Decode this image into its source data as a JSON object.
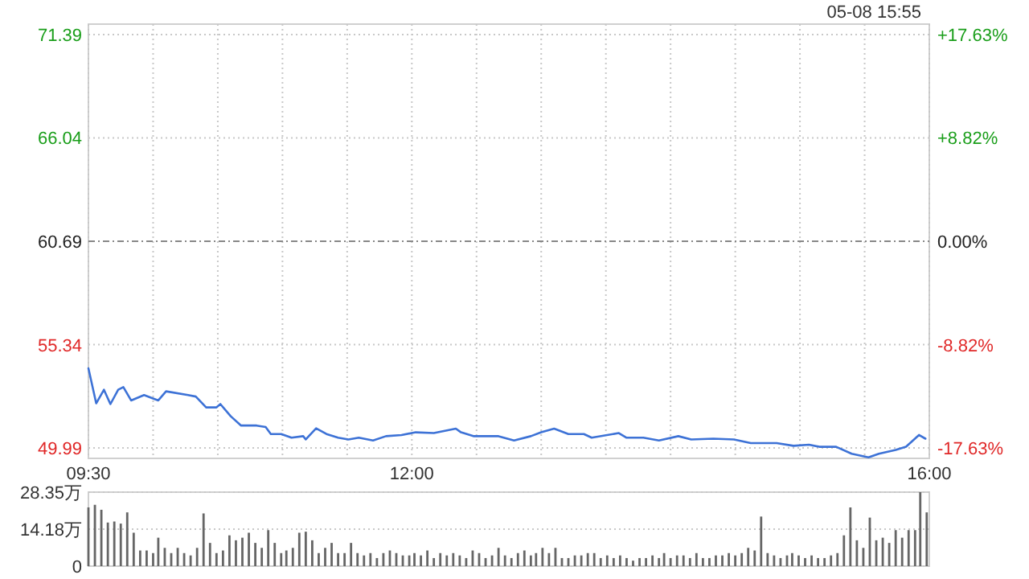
{
  "chart_data": [
    {
      "type": "line",
      "annotations": [
        "05-08 15:55"
      ],
      "x": [
        9.5,
        9.56,
        9.62,
        9.67,
        9.73,
        9.77,
        9.83,
        9.93,
        10.04,
        10.1,
        10.27,
        10.33,
        10.41,
        10.49,
        10.52,
        10.6,
        10.68,
        10.8,
        10.87,
        10.91,
        10.99,
        11.07,
        11.16,
        11.18,
        11.26,
        11.34,
        11.43,
        11.51,
        11.59,
        11.7,
        11.8,
        11.92,
        12.03,
        12.17,
        12.34,
        12.38,
        12.48,
        12.59,
        12.67,
        12.79,
        12.92,
        13.0,
        13.1,
        13.21,
        13.33,
        13.39,
        13.6,
        13.66,
        13.79,
        13.91,
        14.06,
        14.16,
        14.33,
        14.49,
        14.62,
        14.82,
        14.95,
        15.07,
        15.15,
        15.28,
        15.4,
        15.53,
        15.61,
        15.74,
        15.82,
        15.92,
        15.97
      ],
      "series": [
        {
          "color": "#3d72d6",
          "values": [
            54.11,
            52.3,
            53.0,
            52.26,
            53.0,
            53.14,
            52.45,
            52.73,
            52.45,
            52.92,
            52.73,
            52.65,
            52.09,
            52.09,
            52.26,
            51.63,
            51.15,
            51.15,
            51.07,
            50.71,
            50.71,
            50.52,
            50.6,
            50.43,
            51.01,
            50.71,
            50.52,
            50.43,
            50.52,
            50.38,
            50.6,
            50.66,
            50.8,
            50.76,
            50.99,
            50.8,
            50.6,
            50.6,
            50.6,
            50.38,
            50.6,
            50.8,
            50.99,
            50.71,
            50.71,
            50.52,
            50.76,
            50.52,
            50.52,
            50.38,
            50.6,
            50.43,
            50.47,
            50.43,
            50.24,
            50.24,
            50.1,
            50.16,
            50.05,
            50.05,
            49.69,
            49.5,
            49.69,
            49.89,
            50.05,
            50.66,
            50.47
          ]
        }
      ],
      "xlim": [
        9.5,
        16
      ],
      "xticks": [
        {
          "value": 9.5,
          "label": "09:30"
        },
        {
          "value": 10,
          "label": null
        },
        {
          "value": 10.5,
          "label": null
        },
        {
          "value": 11,
          "label": null
        },
        {
          "value": 11.5,
          "label": null
        },
        {
          "value": 12,
          "label": "12:00"
        },
        {
          "value": 12.5,
          "label": null
        },
        {
          "value": 13,
          "label": null
        },
        {
          "value": 13.5,
          "label": null
        },
        {
          "value": 14,
          "label": null
        },
        {
          "value": 14.5,
          "label": null
        },
        {
          "value": 15,
          "label": null
        },
        {
          "value": 15.5,
          "label": null
        },
        {
          "value": 16,
          "label": "16:00"
        }
      ],
      "ylim": [
        49.45,
        71.93
      ],
      "yticks": [
        49.99,
        55.34,
        60.69,
        66.04,
        71.39
      ],
      "y2lim": [
        -18.52,
        18.52
      ],
      "y2ticks": [
        {
          "value": -17.63,
          "label": "-17.63%"
        },
        {
          "value": -8.82,
          "label": "-8.82%"
        },
        {
          "value": 0,
          "label": "0.00%"
        },
        {
          "value": 8.82,
          "label": "+8.82%"
        },
        {
          "value": 17.63,
          "label": "+17.63%"
        }
      ],
      "ref_lines": [
        {
          "axis": "y",
          "value": 60.69
        }
      ],
      "grid": true
    },
    {
      "type": "bar",
      "color": "#666666",
      "tick_labels": "y",
      "grid": "y",
      "x": [
        9.5,
        9.55,
        9.6,
        9.65,
        9.7,
        9.75,
        9.8,
        9.85,
        9.9,
        9.95,
        10.0,
        10.04,
        10.09,
        10.14,
        10.19,
        10.24,
        10.29,
        10.34,
        10.39,
        10.44,
        10.49,
        10.54,
        10.59,
        10.64,
        10.69,
        10.74,
        10.79,
        10.84,
        10.89,
        10.94,
        10.99,
        11.03,
        11.08,
        11.13,
        11.18,
        11.23,
        11.28,
        11.33,
        11.38,
        11.43,
        11.48,
        11.53,
        11.58,
        11.63,
        11.68,
        11.73,
        11.78,
        11.83,
        11.88,
        11.93,
        11.98,
        12.02,
        12.07,
        12.12,
        12.17,
        12.22,
        12.27,
        12.32,
        12.37,
        12.42,
        12.47,
        12.52,
        12.57,
        12.62,
        12.67,
        12.72,
        12.77,
        12.82,
        12.87,
        12.92,
        12.96,
        13.01,
        13.06,
        13.11,
        13.16,
        13.21,
        13.26,
        13.31,
        13.36,
        13.41,
        13.46,
        13.51,
        13.56,
        13.61,
        13.66,
        13.71,
        13.76,
        13.81,
        13.86,
        13.91,
        13.95,
        14.0,
        14.05,
        14.1,
        14.15,
        14.2,
        14.25,
        14.3,
        14.35,
        14.4,
        14.45,
        14.5,
        14.55,
        14.6,
        14.65,
        14.7,
        14.75,
        14.8,
        14.85,
        14.9,
        14.94,
        14.99,
        15.04,
        15.09,
        15.14,
        15.19,
        15.24,
        15.29,
        15.34,
        15.39,
        15.44,
        15.49,
        15.54,
        15.59,
        15.64,
        15.69,
        15.74,
        15.79,
        15.84,
        15.89,
        15.93,
        15.98
      ],
      "values": [
        22.5,
        23.5,
        21.6,
        16.7,
        17.1,
        16.3,
        20.6,
        12.8,
        6.0,
        6.0,
        5.0,
        10.9,
        7.0,
        5.0,
        7.0,
        5.0,
        4.1,
        7.0,
        20.2,
        8.9,
        5.0,
        6.0,
        11.8,
        9.9,
        10.9,
        12.8,
        8.9,
        7.0,
        13.8,
        8.9,
        5.0,
        6.0,
        7.0,
        12.8,
        13.2,
        9.9,
        5.0,
        7.0,
        8.9,
        5.0,
        5.0,
        8.9,
        5.0,
        4.1,
        5.0,
        3.1,
        5.0,
        6.0,
        5.0,
        4.1,
        4.1,
        5.0,
        4.1,
        6.0,
        3.1,
        5.0,
        4.1,
        5.0,
        4.1,
        3.1,
        6.0,
        5.0,
        3.1,
        4.1,
        7.0,
        4.1,
        3.1,
        5.0,
        6.0,
        4.1,
        5.0,
        7.0,
        5.0,
        7.0,
        3.1,
        3.1,
        4.1,
        4.1,
        5.0,
        5.0,
        3.1,
        4.1,
        3.1,
        4.1,
        3.1,
        2.1,
        3.1,
        3.1,
        4.1,
        3.1,
        5.0,
        3.1,
        4.1,
        4.1,
        3.1,
        5.0,
        3.1,
        3.1,
        4.1,
        4.1,
        5.0,
        4.1,
        5.0,
        7.0,
        6.0,
        19.0,
        5.0,
        4.1,
        3.1,
        4.1,
        5.0,
        4.1,
        3.1,
        4.1,
        3.1,
        3.1,
        4.1,
        5.0,
        11.8,
        22.5,
        9.9,
        7.0,
        18.6,
        9.9,
        10.9,
        8.9,
        13.8,
        10.9,
        13.8,
        13.8,
        28.35,
        20.6
      ],
      "xlim": [
        9.5,
        16
      ],
      "ylim": [
        0,
        28.35
      ],
      "yticks": [
        0,
        {
          "value": 14.18,
          "label": "14.18万"
        },
        {
          "value": 28.35,
          "label": "28.35万"
        }
      ]
    }
  ]
}
